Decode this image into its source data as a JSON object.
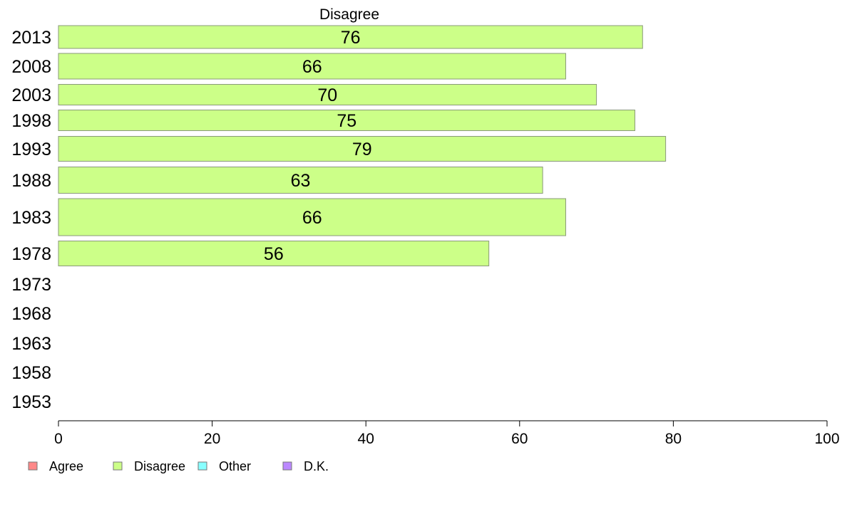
{
  "chart_data": {
    "type": "bar",
    "orientation": "horizontal",
    "title": "Disagree",
    "categories": [
      "2013",
      "2008",
      "2003",
      "1998",
      "1993",
      "1988",
      "1983",
      "1978",
      "1973",
      "1968",
      "1963",
      "1958",
      "1953"
    ],
    "series": [
      {
        "name": "Disagree",
        "values": [
          76,
          66,
          70,
          75,
          79,
          63,
          66,
          56,
          null,
          null,
          null,
          null,
          null
        ],
        "color": "#ccff88"
      }
    ],
    "xlim": [
      0,
      100
    ],
    "xticks": [
      "0",
      "20",
      "40",
      "60",
      "80",
      "100"
    ],
    "legend": {
      "placement": "bottom-left",
      "items": [
        {
          "label": "Agree",
          "color": "#ff8888"
        },
        {
          "label": "Disagree",
          "color": "#ccff88"
        },
        {
          "label": "Other",
          "color": "#88ffff"
        },
        {
          "label": "D.K.",
          "color": "#bb88ff"
        }
      ]
    },
    "grid": false
  }
}
